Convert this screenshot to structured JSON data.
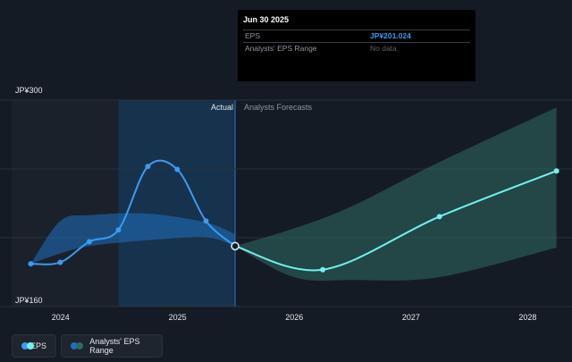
{
  "tooltip": {
    "date": "Jun 30 2025",
    "eps_label": "EPS",
    "eps_value": "JP¥201.024",
    "range_label": "Analysts' EPS Range",
    "range_value": "No data"
  },
  "legend": {
    "eps_label": "EPS",
    "range_label": "Analysts' EPS Range"
  },
  "colors": {
    "eps_actual": "#3b9bf2",
    "eps_forecast": "#6ff3ee",
    "range_actual": "#1f6fbf",
    "range_forecast": "#2f6a64"
  },
  "chart_data": {
    "type": "line",
    "y_axis_labels": [
      "JP¥300",
      "JP¥160"
    ],
    "ylim": [
      160,
      300
    ],
    "x_ticks": [
      "2024",
      "2025",
      "2026",
      "2027",
      "2028"
    ],
    "xlim": [
      "2023-08-01",
      "2028-04-15"
    ],
    "region_labels": {
      "actual": "Actual",
      "forecast": "Analysts Forecasts"
    },
    "present_date": "2025-06-30",
    "highlight_start": "2024-06-30",
    "series": [
      {
        "name": "EPS",
        "segment": "actual",
        "points": [
          {
            "x": "2023-09-30",
            "y": 189
          },
          {
            "x": "2023-12-31",
            "y": 190
          },
          {
            "x": "2024-03-31",
            "y": 204
          },
          {
            "x": "2024-06-30",
            "y": 212
          },
          {
            "x": "2024-09-30",
            "y": 255
          },
          {
            "x": "2024-12-31",
            "y": 253
          },
          {
            "x": "2025-03-31",
            "y": 218
          },
          {
            "x": "2025-06-30",
            "y": 201
          }
        ]
      },
      {
        "name": "EPS",
        "segment": "forecast",
        "points": [
          {
            "x": "2025-06-30",
            "y": 201
          },
          {
            "x": "2026-03-31",
            "y": 185
          },
          {
            "x": "2027-03-31",
            "y": 221
          },
          {
            "x": "2028-03-31",
            "y": 252
          }
        ]
      }
    ],
    "range_actual": [
      {
        "x": "2023-09-30",
        "low": 189,
        "high": 189
      },
      {
        "x": "2023-12-31",
        "low": 196,
        "high": 218
      },
      {
        "x": "2024-03-31",
        "low": 201,
        "high": 222
      },
      {
        "x": "2024-09-30",
        "low": 205,
        "high": 223
      },
      {
        "x": "2025-03-31",
        "low": 207,
        "high": 217
      },
      {
        "x": "2025-06-30",
        "low": 201,
        "high": 209
      }
    ],
    "range_forecast": [
      {
        "x": "2025-06-30",
        "low": 201,
        "high": 201
      },
      {
        "x": "2025-12-31",
        "low": 180,
        "high": 213
      },
      {
        "x": "2026-06-30",
        "low": 178,
        "high": 228
      },
      {
        "x": "2027-03-31",
        "low": 180,
        "high": 258
      },
      {
        "x": "2028-03-31",
        "low": 200,
        "high": 295
      }
    ]
  }
}
